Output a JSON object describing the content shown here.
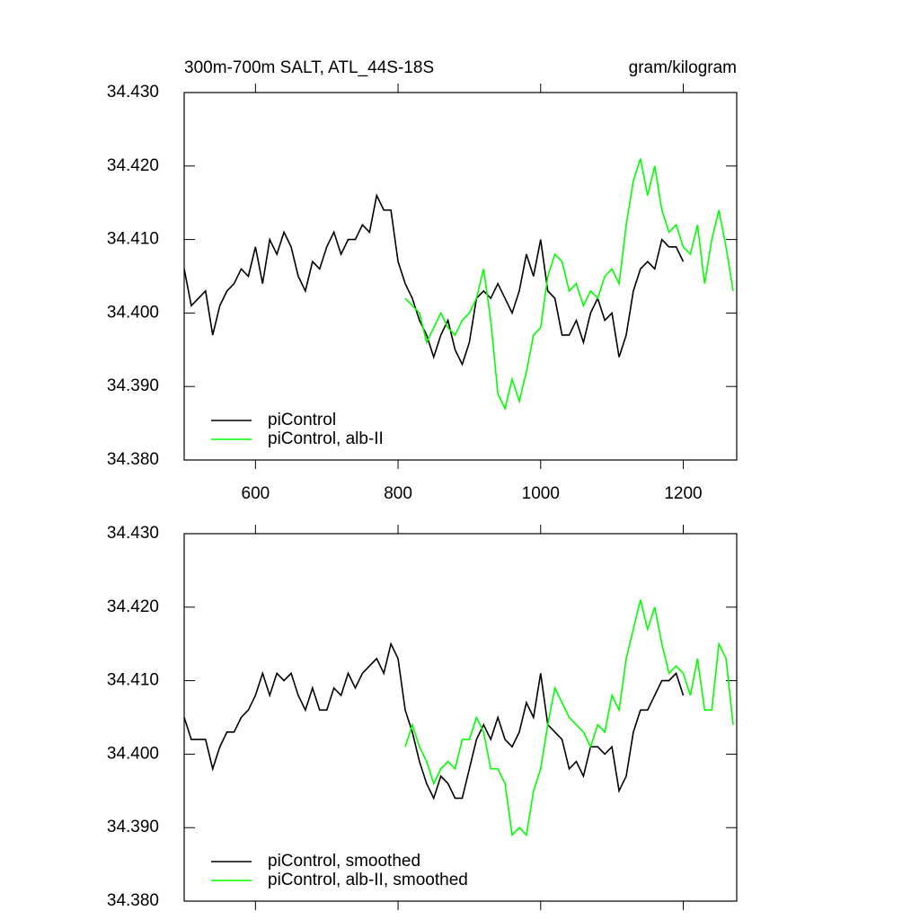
{
  "chart_data": [
    {
      "type": "line",
      "title": "300m-700m SALT, ATL_44S-18S",
      "units": "gram/kilogram",
      "x": [
        500,
        510,
        520,
        530,
        540,
        550,
        560,
        570,
        580,
        590,
        600,
        610,
        620,
        630,
        640,
        650,
        660,
        670,
        680,
        690,
        700,
        710,
        720,
        730,
        740,
        750,
        760,
        770,
        780,
        790,
        800,
        810,
        820,
        830,
        840,
        850,
        860,
        870,
        880,
        890,
        900,
        910,
        920,
        930,
        940,
        950,
        960,
        970,
        980,
        990,
        1000,
        1010,
        1020,
        1030,
        1040,
        1050,
        1060,
        1070,
        1080,
        1090,
        1100,
        1110,
        1120,
        1130,
        1140,
        1150,
        1160,
        1170,
        1180,
        1190,
        1200,
        1210,
        1220,
        1230,
        1240,
        1250,
        1260,
        1270
      ],
      "series": [
        {
          "name": "piControl",
          "color": "#000000",
          "values": [
            34.406,
            34.401,
            34.402,
            34.403,
            34.397,
            34.401,
            34.403,
            34.404,
            34.406,
            34.405,
            34.409,
            34.404,
            34.41,
            34.408,
            34.411,
            34.409,
            34.405,
            34.403,
            34.407,
            34.406,
            34.409,
            34.411,
            34.408,
            34.41,
            34.41,
            34.412,
            34.411,
            34.416,
            34.414,
            34.414,
            34.407,
            34.404,
            34.402,
            34.399,
            34.397,
            34.394,
            34.397,
            34.399,
            34.395,
            34.393,
            34.396,
            34.402,
            34.403,
            34.402,
            34.404,
            34.402,
            34.4,
            34.403,
            34.408,
            34.405,
            34.41,
            34.403,
            34.402,
            34.397,
            34.397,
            34.399,
            34.396,
            34.4,
            34.402,
            34.399,
            34.4,
            34.394,
            34.397,
            34.403,
            34.406,
            34.407,
            34.406,
            34.41,
            34.409,
            34.409,
            34.407,
            null,
            null,
            null,
            null,
            null,
            null,
            null
          ]
        },
        {
          "name": "piControl, alb-II",
          "color": "#00ff00",
          "values": [
            null,
            null,
            null,
            null,
            null,
            null,
            null,
            null,
            null,
            null,
            null,
            null,
            null,
            null,
            null,
            null,
            null,
            null,
            null,
            null,
            null,
            null,
            null,
            null,
            null,
            null,
            null,
            null,
            null,
            null,
            null,
            34.402,
            34.401,
            34.4,
            34.396,
            34.398,
            34.4,
            34.398,
            34.397,
            34.399,
            34.4,
            34.402,
            34.406,
            34.399,
            34.389,
            34.387,
            34.391,
            34.388,
            34.392,
            34.397,
            34.398,
            34.405,
            34.408,
            34.407,
            34.403,
            34.404,
            34.401,
            34.403,
            34.402,
            34.405,
            34.406,
            34.404,
            34.412,
            34.418,
            34.421,
            34.416,
            34.42,
            34.414,
            34.411,
            34.412,
            34.409,
            34.408,
            34.412,
            34.404,
            34.41,
            34.414,
            34.409,
            34.403
          ]
        }
      ],
      "xlim": [
        500,
        1275
      ],
      "xticks": [
        600,
        800,
        1000,
        1200
      ],
      "xtick_labels": true,
      "ylim": [
        34.38,
        34.43
      ],
      "yticks": [
        {
          "value": 34.38,
          "label": "34.380"
        },
        {
          "value": 34.39,
          "label": "34.390"
        },
        {
          "value": 34.4,
          "label": "34.400"
        },
        {
          "value": 34.41,
          "label": "34.410"
        },
        {
          "value": 34.42,
          "label": "34.420"
        },
        {
          "value": 34.43,
          "label": "34.430"
        }
      ],
      "legend": "lower left"
    },
    {
      "type": "line",
      "x": [
        500,
        510,
        520,
        530,
        540,
        550,
        560,
        570,
        580,
        590,
        600,
        610,
        620,
        630,
        640,
        650,
        660,
        670,
        680,
        690,
        700,
        710,
        720,
        730,
        740,
        750,
        760,
        770,
        780,
        790,
        800,
        810,
        820,
        830,
        840,
        850,
        860,
        870,
        880,
        890,
        900,
        910,
        920,
        930,
        940,
        950,
        960,
        970,
        980,
        990,
        1000,
        1010,
        1020,
        1030,
        1040,
        1050,
        1060,
        1070,
        1080,
        1090,
        1100,
        1110,
        1120,
        1130,
        1140,
        1150,
        1160,
        1170,
        1180,
        1190,
        1200,
        1210,
        1220,
        1230,
        1240,
        1250,
        1260,
        1270
      ],
      "series": [
        {
          "name": "piControl, smoothed",
          "color": "#000000",
          "values": [
            34.405,
            34.402,
            34.402,
            34.402,
            34.398,
            34.401,
            34.403,
            34.403,
            34.405,
            34.406,
            34.408,
            34.411,
            34.408,
            34.411,
            34.41,
            34.411,
            34.408,
            34.406,
            34.409,
            34.406,
            34.406,
            34.409,
            34.408,
            34.411,
            34.409,
            34.411,
            34.412,
            34.413,
            34.411,
            34.415,
            34.413,
            34.406,
            34.403,
            34.399,
            34.396,
            34.394,
            34.397,
            34.396,
            34.394,
            34.394,
            34.398,
            34.402,
            34.404,
            34.402,
            34.405,
            34.402,
            34.401,
            34.403,
            34.407,
            34.405,
            34.411,
            34.404,
            34.403,
            34.402,
            34.398,
            34.399,
            34.397,
            34.401,
            34.401,
            34.4,
            34.401,
            34.395,
            34.397,
            34.403,
            34.406,
            34.406,
            34.408,
            34.41,
            34.41,
            34.411,
            34.408,
            null,
            null,
            null,
            null,
            null,
            null,
            null
          ]
        },
        {
          "name": "piControl, alb-II, smoothed",
          "color": "#00ff00",
          "values": [
            null,
            null,
            null,
            null,
            null,
            null,
            null,
            null,
            null,
            null,
            null,
            null,
            null,
            null,
            null,
            null,
            null,
            null,
            null,
            null,
            null,
            null,
            null,
            null,
            null,
            null,
            null,
            null,
            null,
            null,
            null,
            34.401,
            34.404,
            34.401,
            34.399,
            34.396,
            34.398,
            34.399,
            34.398,
            34.402,
            34.402,
            34.405,
            34.403,
            34.398,
            34.398,
            34.396,
            34.389,
            34.39,
            34.389,
            34.395,
            34.398,
            34.404,
            34.409,
            34.407,
            34.405,
            34.404,
            34.403,
            34.401,
            34.404,
            34.403,
            34.408,
            34.406,
            34.413,
            34.417,
            34.421,
            34.417,
            34.42,
            34.415,
            34.411,
            34.412,
            34.411,
            34.408,
            34.413,
            34.406,
            34.406,
            34.415,
            34.413,
            34.404
          ]
        }
      ],
      "xlim": [
        500,
        1275
      ],
      "xticks": [
        600,
        800,
        1000,
        1200
      ],
      "xtick_labels": false,
      "ylim": [
        34.38,
        34.43
      ],
      "yticks": [
        {
          "value": 34.38,
          "label": "34.380"
        },
        {
          "value": 34.39,
          "label": "34.390"
        },
        {
          "value": 34.4,
          "label": "34.400"
        },
        {
          "value": 34.41,
          "label": "34.410"
        },
        {
          "value": 34.42,
          "label": "34.420"
        },
        {
          "value": 34.43,
          "label": "34.430"
        }
      ],
      "legend": "lower left"
    }
  ]
}
